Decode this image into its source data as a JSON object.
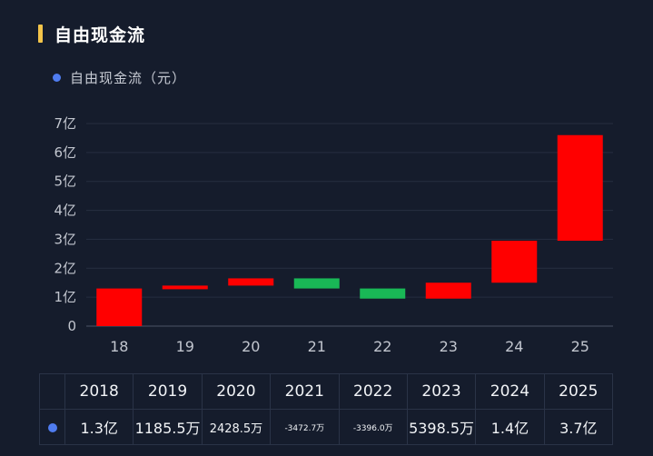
{
  "title": "自由现金流",
  "legend": {
    "label": "自由现金流（元）",
    "color": "#4f7cf0"
  },
  "chart_data": {
    "type": "bar",
    "subtype": "waterfall",
    "categories": [
      "18",
      "19",
      "20",
      "21",
      "22",
      "23",
      "24",
      "25"
    ],
    "ranges": [
      [
        0,
        1.3
      ],
      [
        1.3,
        1.4
      ],
      [
        1.4,
        1.65
      ],
      [
        1.3,
        1.65
      ],
      [
        0.95,
        1.3
      ],
      [
        0.95,
        1.5
      ],
      [
        1.5,
        2.95
      ],
      [
        2.95,
        6.6
      ]
    ],
    "directions": [
      "up",
      "up",
      "up",
      "down",
      "down",
      "up",
      "up",
      "up"
    ],
    "colors": {
      "up": "#ff0000",
      "down": "#19b856"
    },
    "ylim": [
      0,
      7
    ],
    "yticks": [
      "0",
      "1亿",
      "2亿",
      "3亿",
      "4亿",
      "5亿",
      "6亿",
      "7亿"
    ],
    "grid": true,
    "legend_position": "top-left"
  },
  "table": {
    "years": [
      "2018",
      "2019",
      "2020",
      "2021",
      "2022",
      "2023",
      "2024",
      "2025"
    ],
    "values": [
      "1.3亿",
      "1185.5万",
      "2428.5万",
      "-3472.7万",
      "-3396.0万",
      "5398.5万",
      "1.4亿",
      "3.7亿"
    ]
  }
}
